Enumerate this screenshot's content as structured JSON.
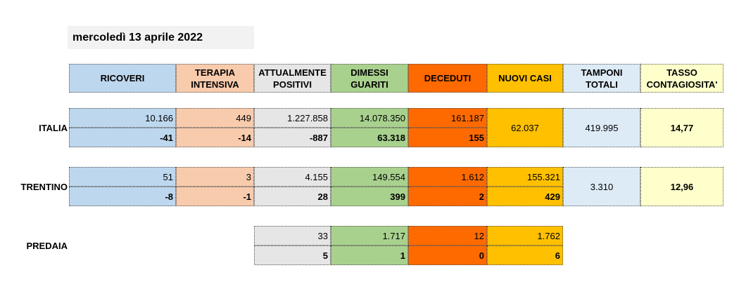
{
  "date": "mercoledì 13 aprile 2022",
  "headers": {
    "ricoveri": "RICOVERI",
    "terapia_1": "TERAPIA",
    "terapia_2": "INTENSIVA",
    "attualmente_1": "ATTUALMENTE",
    "attualmente_2": "POSITIVI",
    "dimessi_1": "DIMESSI",
    "dimessi_2": "GUARITI",
    "deceduti": "DECEDUTI",
    "nuovi_casi": "NUOVI CASI",
    "tamponi_1": "TAMPONI",
    "tamponi_2": "TOTALI",
    "tasso_1": "TASSO",
    "tasso_2": "CONTAGIOSITA'"
  },
  "rows": {
    "italia": {
      "label": "ITALIA",
      "ricoveri": "10.166",
      "ricoveri_delta": "-41",
      "terapia": "449",
      "terapia_delta": "-14",
      "positivi": "1.227.858",
      "positivi_delta": "-887",
      "guariti": "14.078.350",
      "guariti_delta": "63.318",
      "deceduti": "161.187",
      "deceduti_delta": "155",
      "nuovi_casi": "62.037",
      "tamponi": "419.995",
      "tasso": "14,77"
    },
    "trentino": {
      "label": "TRENTINO",
      "ricoveri": "51",
      "ricoveri_delta": "-8",
      "terapia": "3",
      "terapia_delta": "-1",
      "positivi": "4.155",
      "positivi_delta": "28",
      "guariti": "149.554",
      "guariti_delta": "399",
      "deceduti": "1.612",
      "deceduti_delta": "2",
      "nuovi_casi": "155.321",
      "nuovi_casi_delta": "429",
      "tamponi": "3.310",
      "tasso": "12,96"
    },
    "predaia": {
      "label": "PREDAIA",
      "positivi": "33",
      "positivi_delta": "5",
      "guariti": "1.717",
      "guariti_delta": "1",
      "deceduti": "12",
      "deceduti_delta": "0",
      "nuovi_casi": "1.762",
      "nuovi_casi_delta": "6"
    }
  }
}
